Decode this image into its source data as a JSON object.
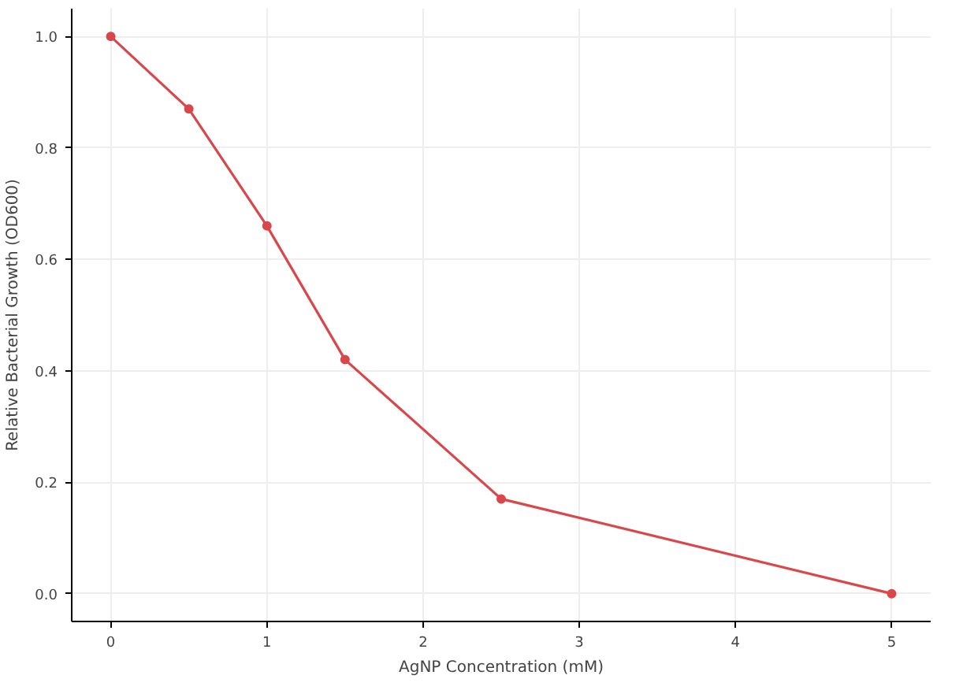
{
  "chart_data": {
    "type": "line",
    "xlabel": "AgNP Concentration (mM)",
    "ylabel": "Relative Bacterial Growth (OD600)",
    "x": [
      0,
      0.5,
      1,
      1.5,
      2.5,
      5
    ],
    "series": [
      {
        "color": "#d9474b",
        "values": [
          1.0,
          0.87,
          0.66,
          0.42,
          0.17,
          0.0
        ]
      }
    ],
    "xlim": [
      -0.25,
      5.25
    ],
    "ylim": [
      -0.05,
      1.05
    ],
    "xticks": [
      0,
      1,
      2,
      3,
      4,
      5
    ],
    "yticks": [
      {
        "value": 0,
        "label": "0.0"
      },
      {
        "value": 0.2,
        "label": "0.2"
      },
      {
        "value": 0.4,
        "label": "0.4"
      },
      {
        "value": 0.6,
        "label": "0.6"
      },
      {
        "value": 0.8,
        "label": "0.8"
      },
      {
        "value": 1.0,
        "label": "1.0"
      }
    ],
    "grid": true,
    "marker": "circle",
    "line_style": "solid"
  }
}
